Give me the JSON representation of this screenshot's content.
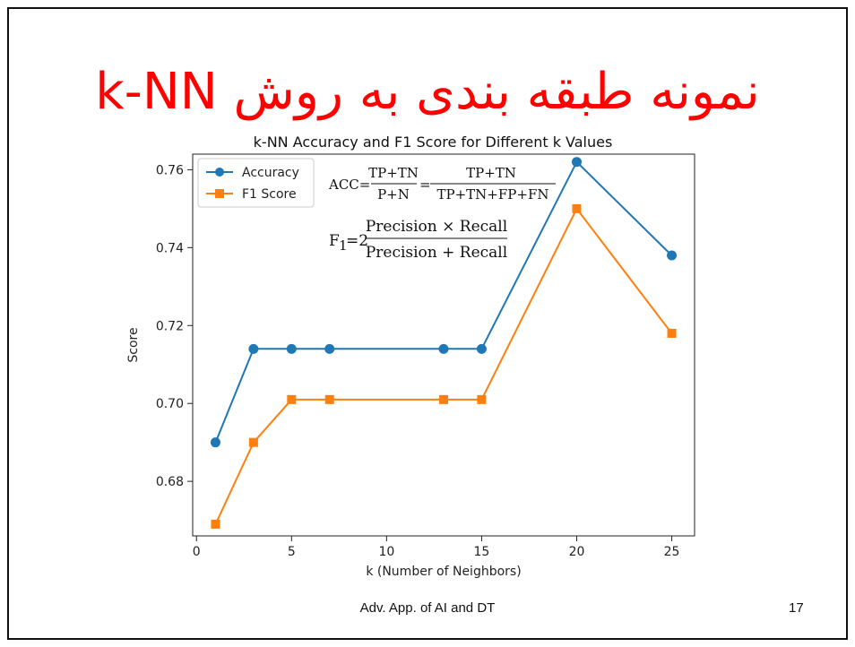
{
  "slide": {
    "title": "نمونه طبقه بندی به روش k-NN",
    "footer": "Adv. App. of AI and DT",
    "page_number": "17"
  },
  "formulas": {
    "acc": {
      "lhs": "ACC=",
      "num1": "TP+TN",
      "den1": "P+N",
      "eq": "=",
      "num2": "TP+TN",
      "den2": "TP+TN+FP+FN"
    },
    "f1": {
      "lhs": "F",
      "sub": "1",
      "mid": "=2",
      "num": "Precision × Recall",
      "den": "Precision + Recall"
    }
  },
  "chart_data": {
    "type": "line",
    "title": "k-NN Accuracy and F1 Score for Different k Values",
    "xlabel": "k (Number of Neighbors)",
    "ylabel": "Score",
    "xlim": [
      -0.2,
      26.2
    ],
    "ylim": [
      0.666,
      0.764
    ],
    "xticks": [
      0,
      5,
      10,
      15,
      20,
      25
    ],
    "yticks": [
      0.68,
      0.7,
      0.72,
      0.74,
      0.76
    ],
    "x": [
      1,
      3,
      5,
      7,
      13,
      15,
      20,
      25
    ],
    "series": [
      {
        "name": "Accuracy",
        "color": "#1f77b4",
        "marker": "circle",
        "values": [
          0.69,
          0.714,
          0.714,
          0.714,
          0.714,
          0.714,
          0.762,
          0.738
        ]
      },
      {
        "name": "F1 Score",
        "color": "#ff7f0e",
        "marker": "square",
        "values": [
          0.669,
          0.69,
          0.701,
          0.701,
          0.701,
          0.701,
          0.75,
          0.718
        ]
      }
    ],
    "grid": false,
    "legend": "top-left"
  }
}
